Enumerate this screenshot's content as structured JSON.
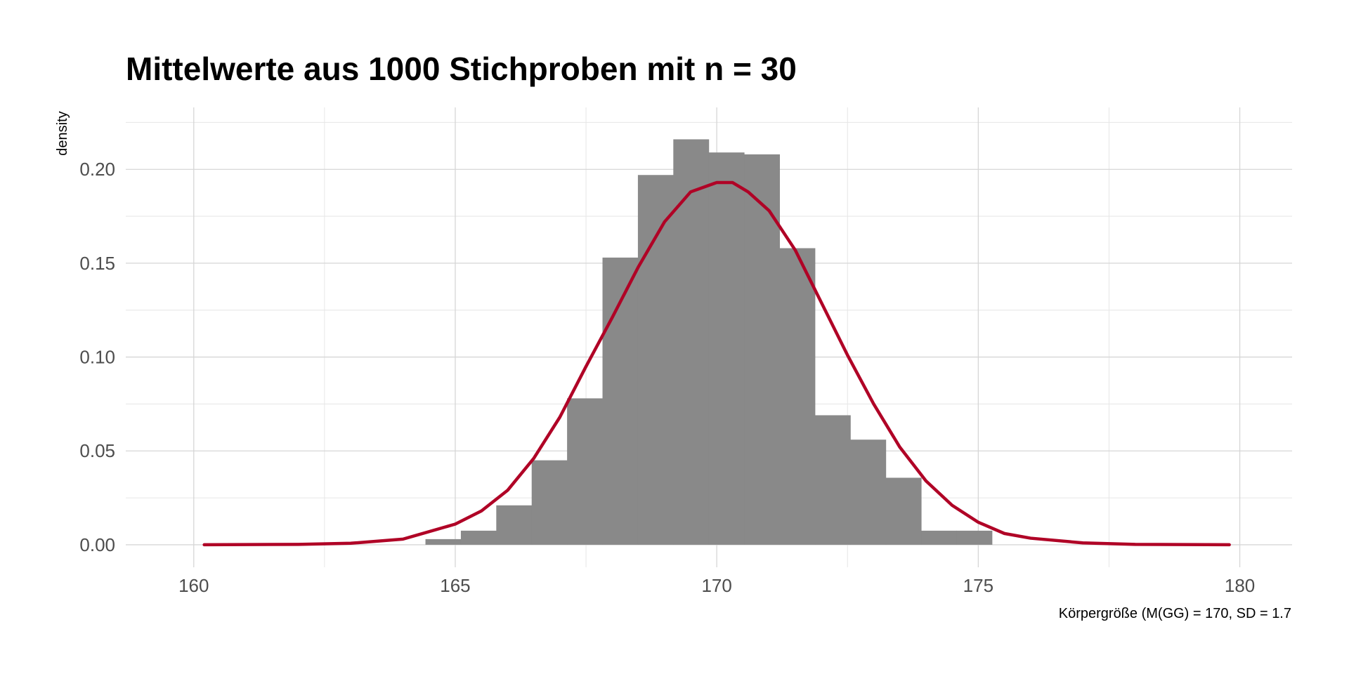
{
  "chart_data": {
    "type": "histogram",
    "title": "Mittelwerte aus 1000 Stichproben mit n = 30",
    "xlabel": "Körpergröße (M(GG) = 170, SD = 1.7",
    "ylabel": "density",
    "xlim": [
      158.7,
      181.0
    ],
    "ylim": [
      -0.012,
      0.233
    ],
    "x_ticks": [
      160,
      165,
      170,
      175,
      180
    ],
    "x_tick_labels": [
      "160",
      "165",
      "170",
      "175",
      "180"
    ],
    "y_ticks": [
      0,
      0.05,
      0.1,
      0.15,
      0.2
    ],
    "y_tick_labels": [
      "0.00",
      "0.05",
      "0.10",
      "0.15",
      "0.20"
    ],
    "grid": true,
    "legend": "none",
    "bars": {
      "bin_start": 164.43,
      "bin_width": 0.677,
      "values": [
        0.003,
        0.0075,
        0.021,
        0.045,
        0.078,
        0.153,
        0.197,
        0.216,
        0.209,
        0.208,
        0.158,
        0.069,
        0.056,
        0.0357,
        0.0075,
        0.0075
      ],
      "color": "#898989"
    },
    "density_curve": {
      "color": "#b00326",
      "x": [
        160.2,
        162,
        163,
        164,
        165,
        165.5,
        166,
        166.5,
        167,
        167.5,
        168,
        168.5,
        169,
        169.5,
        170,
        170.3,
        170.6,
        171,
        171.5,
        172,
        172.5,
        173,
        173.5,
        174,
        174.5,
        175,
        175.5,
        176,
        177,
        178,
        179.8
      ],
      "y": [
        0.0,
        0.0002,
        0.0008,
        0.003,
        0.011,
        0.018,
        0.029,
        0.046,
        0.068,
        0.095,
        0.121,
        0.148,
        0.172,
        0.188,
        0.193,
        0.193,
        0.188,
        0.178,
        0.157,
        0.129,
        0.101,
        0.075,
        0.052,
        0.034,
        0.021,
        0.012,
        0.006,
        0.0035,
        0.001,
        0.0002,
        0.0
      ]
    }
  }
}
